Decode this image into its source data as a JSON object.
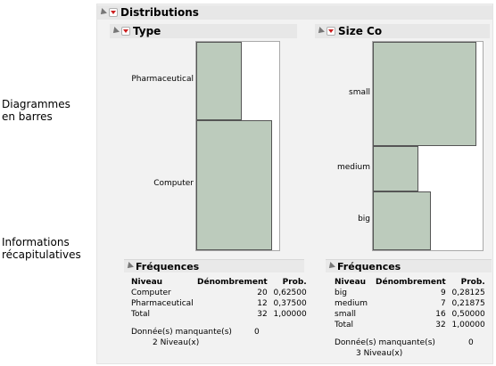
{
  "annotations": {
    "bar_charts": [
      "Diagrammes",
      "en barres"
    ],
    "summary_info": [
      "Informations",
      "récapitulatives"
    ]
  },
  "report": {
    "title": "Distributions",
    "panels": [
      {
        "title": "Type",
        "chart_categories": [
          "Pharmaceutical",
          "Computer"
        ],
        "chart_values": [
          12,
          20
        ],
        "freq": {
          "title": "Fréquences",
          "col_level": "Niveau",
          "col_count": "Dénombrement",
          "col_prob": "Prob.",
          "rows": [
            {
              "level": "Computer",
              "count": "20",
              "prob": "0,62500"
            },
            {
              "level": "Pharmaceutical",
              "count": "12",
              "prob": "0,37500"
            },
            {
              "level": "Total",
              "count": "32",
              "prob": "1,00000"
            }
          ],
          "missing_label": "Donnée(s) manquante(s)",
          "missing_value": "0",
          "levels_text": "2  Niveau(x)"
        }
      },
      {
        "title": "Size Co",
        "chart_categories": [
          "small",
          "medium",
          "big"
        ],
        "chart_values": [
          16,
          7,
          9
        ],
        "freq": {
          "title": "Fréquences",
          "col_level": "Niveau",
          "col_count": "Dénombrement",
          "col_prob": "Prob.",
          "rows": [
            {
              "level": "big",
              "count": "9",
              "prob": "0,28125"
            },
            {
              "level": "medium",
              "count": "7",
              "prob": "0,21875"
            },
            {
              "level": "small",
              "count": "16",
              "prob": "0,50000"
            },
            {
              "level": "Total",
              "count": "32",
              "prob": "1,00000"
            }
          ],
          "missing_label": "Donnée(s) manquante(s)",
          "missing_value": "0",
          "levels_text": "3  Niveau(x)"
        }
      }
    ]
  },
  "colors": {
    "bar_fill": "#bccbbc",
    "bar_border": "#555555",
    "red_triangle": "#cc1f1f"
  }
}
